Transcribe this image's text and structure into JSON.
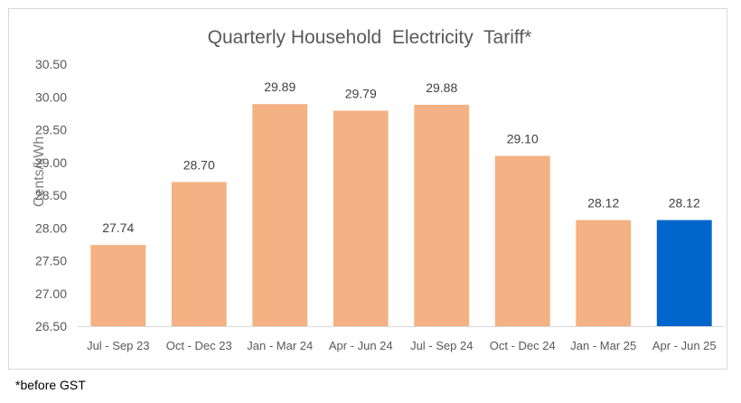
{
  "chart_data": {
    "type": "bar",
    "title": "Quarterly Household  Electricity  Tariff*",
    "xlabel": "",
    "ylabel": "Cents/kWh",
    "categories": [
      "Jul - Sep 23",
      "Oct - Dec 23",
      "Jan - Mar 24",
      "Apr - Jun 24",
      "Jul - Sep 24",
      "Oct - Dec 24",
      "Jan - Mar 25",
      "Apr - Jun 25"
    ],
    "values": [
      27.74,
      28.7,
      29.89,
      29.79,
      29.88,
      29.1,
      28.12,
      28.12
    ],
    "value_labels": [
      "27.74",
      "28.70",
      "29.89",
      "29.79",
      "29.88",
      "29.10",
      "28.12",
      "28.12"
    ],
    "ylim": [
      26.5,
      30.5
    ],
    "yticks": [
      "26.50",
      "27.00",
      "27.50",
      "28.00",
      "28.50",
      "29.00",
      "29.50",
      "30.00",
      "30.50"
    ],
    "grid": false,
    "legend": "none",
    "colors": {
      "default_bar": "#f4b183",
      "highlight_bar": "#0066cc",
      "axis_line": "#d9d9d9"
    },
    "highlight_index": 7
  },
  "footnote": "*before GST"
}
